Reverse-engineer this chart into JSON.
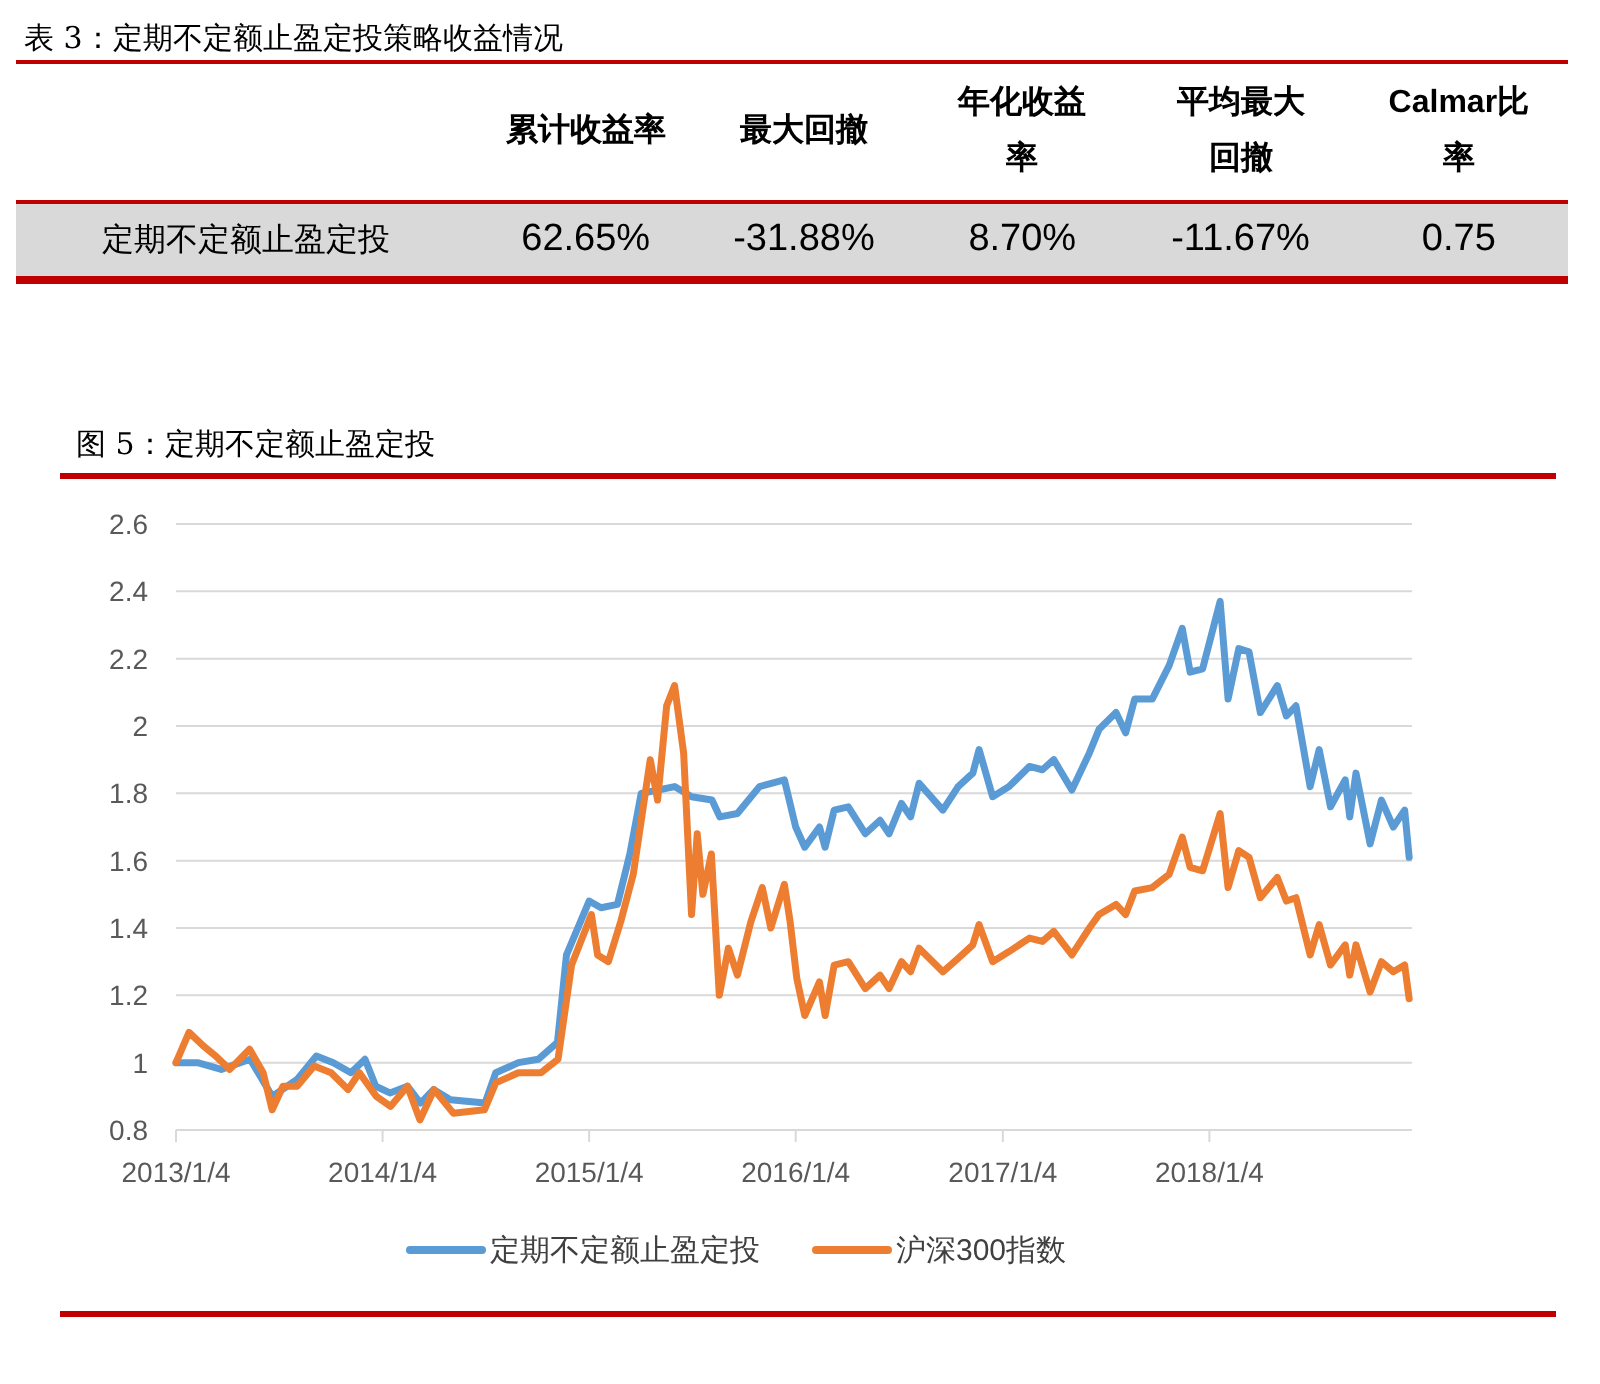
{
  "chart_data": [
    {
      "type": "other",
      "title": "表 3：定期不定额止盈定投策略收益情况",
      "categories": [
        "累计收益率",
        "最大回撤",
        "年化收益率",
        "平均最大回撤",
        "Calmar比率"
      ],
      "series": [
        {
          "name": "定期不定额止盈定投",
          "values": [
            62.65,
            -31.88,
            8.7,
            -11.67,
            0.75
          ],
          "value_labels": [
            "62.65%",
            "-31.88%",
            "8.70%",
            "-11.67%",
            "0.75"
          ]
        }
      ]
    },
    {
      "type": "line",
      "title": "图 5：定期不定额止盈定投",
      "xlim": [
        "2013-01-04",
        "2018-12-28"
      ],
      "ylim": [
        0.8,
        2.6
      ],
      "yticks": [
        0.8,
        1,
        1.2,
        1.4,
        1.6,
        1.8,
        2,
        2.2,
        2.4,
        2.6
      ],
      "xticks": [
        {
          "value": "2013-01-04",
          "label": "2013/1/4"
        },
        {
          "value": "2014-01-04",
          "label": "2014/1/4"
        },
        {
          "value": "2015-01-04",
          "label": "2015/1/4"
        },
        {
          "value": "2016-01-04",
          "label": "2016/1/4"
        },
        {
          "value": "2017-01-04",
          "label": "2017/1/4"
        },
        {
          "value": "2018-01-04",
          "label": "2018/1/4"
        }
      ],
      "grid": "y",
      "legend": "bottom",
      "series": [
        {
          "name": "定期不定额止盈定投",
          "color": "#5b9bd5",
          "x": [
            "2013-01-04",
            "2013-02-11",
            "2013-03-25",
            "2013-05-15",
            "2013-06-23",
            "2013-08-06",
            "2013-09-09",
            "2013-10-09",
            "2013-11-09",
            "2013-12-04",
            "2013-12-23",
            "2014-01-17",
            "2014-02-17",
            "2014-03-12",
            "2014-04-04",
            "2014-05-04",
            "2014-07-04",
            "2014-07-23",
            "2014-09-01",
            "2014-10-06",
            "2014-11-09",
            "2014-11-25",
            "2015-01-04",
            "2015-01-25",
            "2015-02-23",
            "2015-03-17",
            "2015-04-06",
            "2015-05-06",
            "2015-06-04",
            "2015-07-04",
            "2015-08-09",
            "2015-08-23",
            "2015-09-23",
            "2015-11-01",
            "2015-12-15",
            "2016-01-04",
            "2016-01-20",
            "2016-02-15",
            "2016-02-25",
            "2016-03-12",
            "2016-04-06",
            "2016-05-06",
            "2016-06-01",
            "2016-06-17",
            "2016-07-09",
            "2016-07-25",
            "2016-08-09",
            "2016-09-20",
            "2016-10-17",
            "2016-11-12",
            "2016-11-23",
            "2016-12-17",
            "2017-01-15",
            "2017-02-20",
            "2017-03-15",
            "2017-04-04",
            "2017-05-06",
            "2017-06-06",
            "2017-06-23",
            "2017-07-23",
            "2017-08-09",
            "2017-08-25",
            "2017-09-25",
            "2017-10-25",
            "2017-11-17",
            "2017-12-01",
            "2017-12-23",
            "2018-01-23",
            "2018-02-06",
            "2018-02-25",
            "2018-03-15",
            "2018-04-04",
            "2018-05-04",
            "2018-05-20",
            "2018-06-06",
            "2018-07-01",
            "2018-07-17",
            "2018-08-06",
            "2018-09-01",
            "2018-09-09",
            "2018-09-20",
            "2018-10-15",
            "2018-11-04",
            "2018-11-25",
            "2018-12-15",
            "2018-12-23"
          ],
          "values": [
            1.0,
            1.0,
            0.98,
            1.01,
            0.9,
            0.95,
            1.02,
            1.0,
            0.97,
            1.01,
            0.93,
            0.91,
            0.93,
            0.88,
            0.92,
            0.89,
            0.88,
            0.97,
            1.0,
            1.01,
            1.06,
            1.32,
            1.48,
            1.46,
            1.47,
            1.62,
            1.8,
            1.81,
            1.82,
            1.79,
            1.78,
            1.73,
            1.74,
            1.82,
            1.84,
            1.7,
            1.64,
            1.7,
            1.64,
            1.75,
            1.76,
            1.68,
            1.72,
            1.68,
            1.77,
            1.73,
            1.83,
            1.75,
            1.82,
            1.86,
            1.93,
            1.79,
            1.82,
            1.88,
            1.87,
            1.9,
            1.81,
            1.92,
            1.99,
            2.04,
            1.98,
            2.08,
            2.08,
            2.18,
            2.29,
            2.16,
            2.17,
            2.37,
            2.08,
            2.23,
            2.22,
            2.04,
            2.12,
            2.03,
            2.06,
            1.82,
            1.93,
            1.76,
            1.84,
            1.73,
            1.86,
            1.65,
            1.78,
            1.7,
            1.75,
            1.61
          ]
        },
        {
          "name": "沪深300指数",
          "color": "#ed7d31",
          "x": [
            "2013-01-04",
            "2013-01-27",
            "2013-02-21",
            "2013-03-15",
            "2013-04-09",
            "2013-05-14",
            "2013-06-07",
            "2013-06-23",
            "2013-07-12",
            "2013-08-06",
            "2013-09-05",
            "2013-10-05",
            "2013-11-04",
            "2013-11-24",
            "2013-12-24",
            "2014-01-18",
            "2014-02-17",
            "2014-03-11",
            "2014-04-05",
            "2014-05-09",
            "2014-07-03",
            "2014-07-23",
            "2014-09-01",
            "2014-10-11",
            "2014-11-10",
            "2014-12-04",
            "2015-01-08",
            "2015-01-19",
            "2015-02-07",
            "2015-03-01",
            "2015-03-23",
            "2015-04-22",
            "2015-05-05",
            "2015-05-21",
            "2015-06-04",
            "2015-06-20",
            "2015-07-04",
            "2015-07-14",
            "2015-07-24",
            "2015-08-08",
            "2015-08-22",
            "2015-09-07",
            "2015-09-23",
            "2015-10-17",
            "2015-11-06",
            "2015-11-21",
            "2015-12-15",
            "2015-12-25",
            "2016-01-06",
            "2016-01-20",
            "2016-02-15",
            "2016-02-25",
            "2016-03-12",
            "2016-04-06",
            "2016-05-06",
            "2016-06-01",
            "2016-06-17",
            "2016-07-09",
            "2016-07-25",
            "2016-08-09",
            "2016-09-20",
            "2016-10-17",
            "2016-11-12",
            "2016-11-23",
            "2016-12-17",
            "2017-01-15",
            "2017-02-20",
            "2017-03-15",
            "2017-04-04",
            "2017-05-06",
            "2017-06-06",
            "2017-06-23",
            "2017-07-23",
            "2017-08-09",
            "2017-08-25",
            "2017-09-25",
            "2017-10-25",
            "2017-11-17",
            "2017-12-01",
            "2017-12-23",
            "2018-01-23",
            "2018-02-06",
            "2018-02-25",
            "2018-03-15",
            "2018-04-04",
            "2018-05-04",
            "2018-05-20",
            "2018-06-06",
            "2018-07-01",
            "2018-07-17",
            "2018-08-06",
            "2018-09-01",
            "2018-09-09",
            "2018-09-20",
            "2018-10-15",
            "2018-11-04",
            "2018-11-25",
            "2018-12-15",
            "2018-12-23"
          ],
          "values": [
            1.0,
            1.09,
            1.05,
            1.02,
            0.98,
            1.04,
            0.97,
            0.86,
            0.93,
            0.93,
            0.99,
            0.97,
            0.92,
            0.97,
            0.9,
            0.87,
            0.93,
            0.83,
            0.92,
            0.85,
            0.86,
            0.94,
            0.97,
            0.97,
            1.01,
            1.29,
            1.44,
            1.32,
            1.3,
            1.42,
            1.56,
            1.9,
            1.78,
            2.06,
            2.12,
            1.92,
            1.44,
            1.68,
            1.5,
            1.62,
            1.2,
            1.34,
            1.26,
            1.42,
            1.52,
            1.4,
            1.53,
            1.42,
            1.25,
            1.14,
            1.24,
            1.14,
            1.29,
            1.3,
            1.22,
            1.26,
            1.22,
            1.3,
            1.27,
            1.34,
            1.27,
            1.31,
            1.35,
            1.41,
            1.3,
            1.33,
            1.37,
            1.36,
            1.39,
            1.32,
            1.4,
            1.44,
            1.47,
            1.44,
            1.51,
            1.52,
            1.56,
            1.67,
            1.58,
            1.57,
            1.74,
            1.52,
            1.63,
            1.61,
            1.49,
            1.55,
            1.48,
            1.49,
            1.32,
            1.41,
            1.29,
            1.35,
            1.26,
            1.35,
            1.21,
            1.3,
            1.27,
            1.29,
            1.19
          ]
        }
      ]
    }
  ]
}
